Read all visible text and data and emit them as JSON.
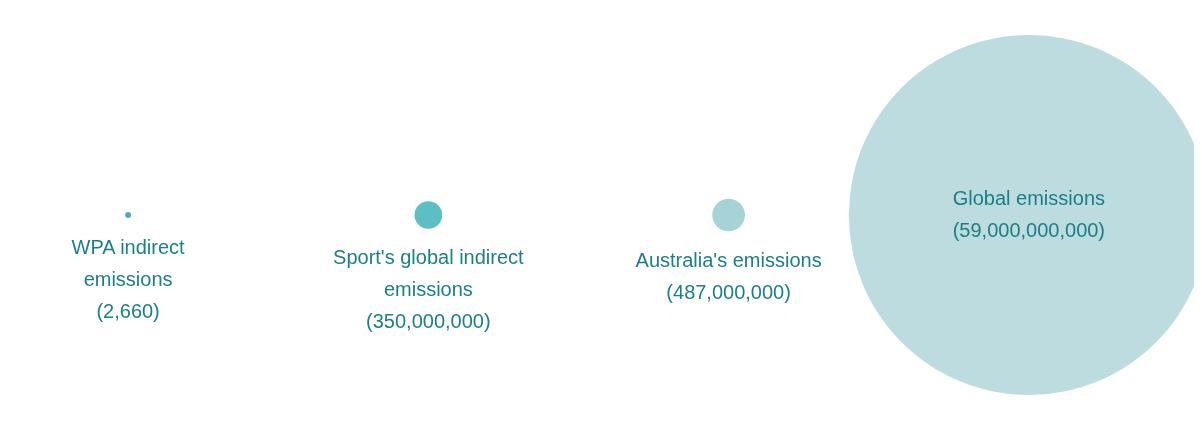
{
  "chart_data": {
    "type": "other",
    "categories": [
      "WPA indirect emissions",
      "Sport's global indirect emissions",
      "Australia's emissions",
      "Global emissions"
    ],
    "values": [
      2660,
      350000000,
      487000000,
      59000000000
    ],
    "value_labels": [
      "(2,660)",
      "(350,000,000)",
      "(487,000,000)",
      "(59,000,000,000)"
    ],
    "colors": [
      "#5aa9ad",
      "#5bbfc4",
      "#a5d3d6",
      "#bcdcdf"
    ]
  }
}
